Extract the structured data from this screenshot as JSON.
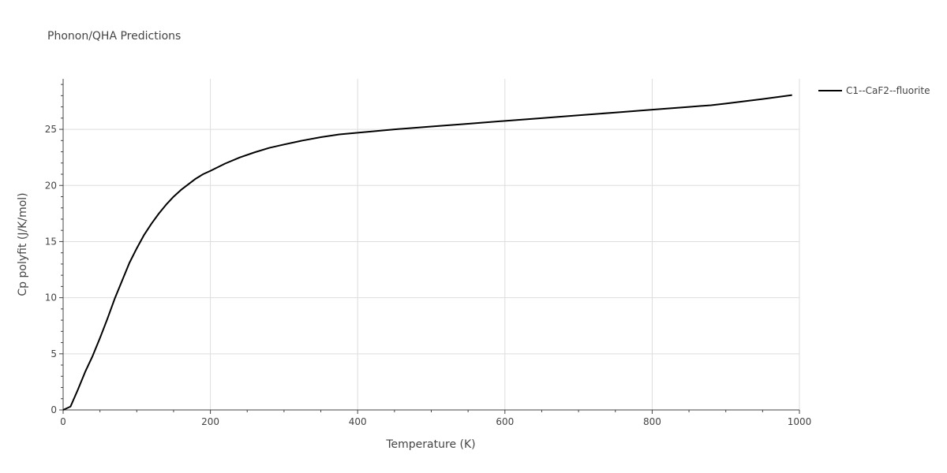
{
  "chart_data": {
    "type": "line",
    "title": "Phonon/QHA Predictions",
    "xlabel": "Temperature (K)",
    "ylabel": "Cp polyfit (J/K/mol)",
    "xlim": [
      0,
      1000
    ],
    "ylim": [
      0,
      29.5
    ],
    "xticks": [
      0,
      200,
      400,
      600,
      800,
      1000
    ],
    "xtick_labels": [
      "0",
      "200",
      "400",
      "600",
      "800",
      "1000"
    ],
    "yticks": [
      0,
      5,
      10,
      15,
      20,
      25
    ],
    "ytick_labels": [
      "0",
      "5",
      "10",
      "15",
      "20",
      "25"
    ],
    "grid": true,
    "legend_position": "top-right",
    "line_color": "#000000",
    "grid_color": "#dddddd",
    "series": [
      {
        "name": "C1--CaF2--fluorite",
        "x": [
          0,
          10,
          20,
          30,
          40,
          50,
          60,
          70,
          80,
          90,
          100,
          110,
          120,
          130,
          140,
          150,
          160,
          170,
          180,
          190,
          200,
          220,
          240,
          260,
          280,
          300,
          325,
          350,
          375,
          400,
          450,
          500,
          550,
          600,
          650,
          700,
          750,
          800,
          850,
          880,
          900,
          950,
          990
        ],
        "y": [
          0,
          0.3,
          1.8,
          3.4,
          4.8,
          6.4,
          8.1,
          9.9,
          11.5,
          13.1,
          14.4,
          15.6,
          16.6,
          17.5,
          18.3,
          19.0,
          19.6,
          20.1,
          20.6,
          21.0,
          21.3,
          21.95,
          22.5,
          22.95,
          23.35,
          23.65,
          24.0,
          24.3,
          24.55,
          24.7,
          25.0,
          25.25,
          25.5,
          25.75,
          26.0,
          26.25,
          26.5,
          26.75,
          27.0,
          27.15,
          27.3,
          27.7,
          28.05
        ]
      }
    ]
  }
}
